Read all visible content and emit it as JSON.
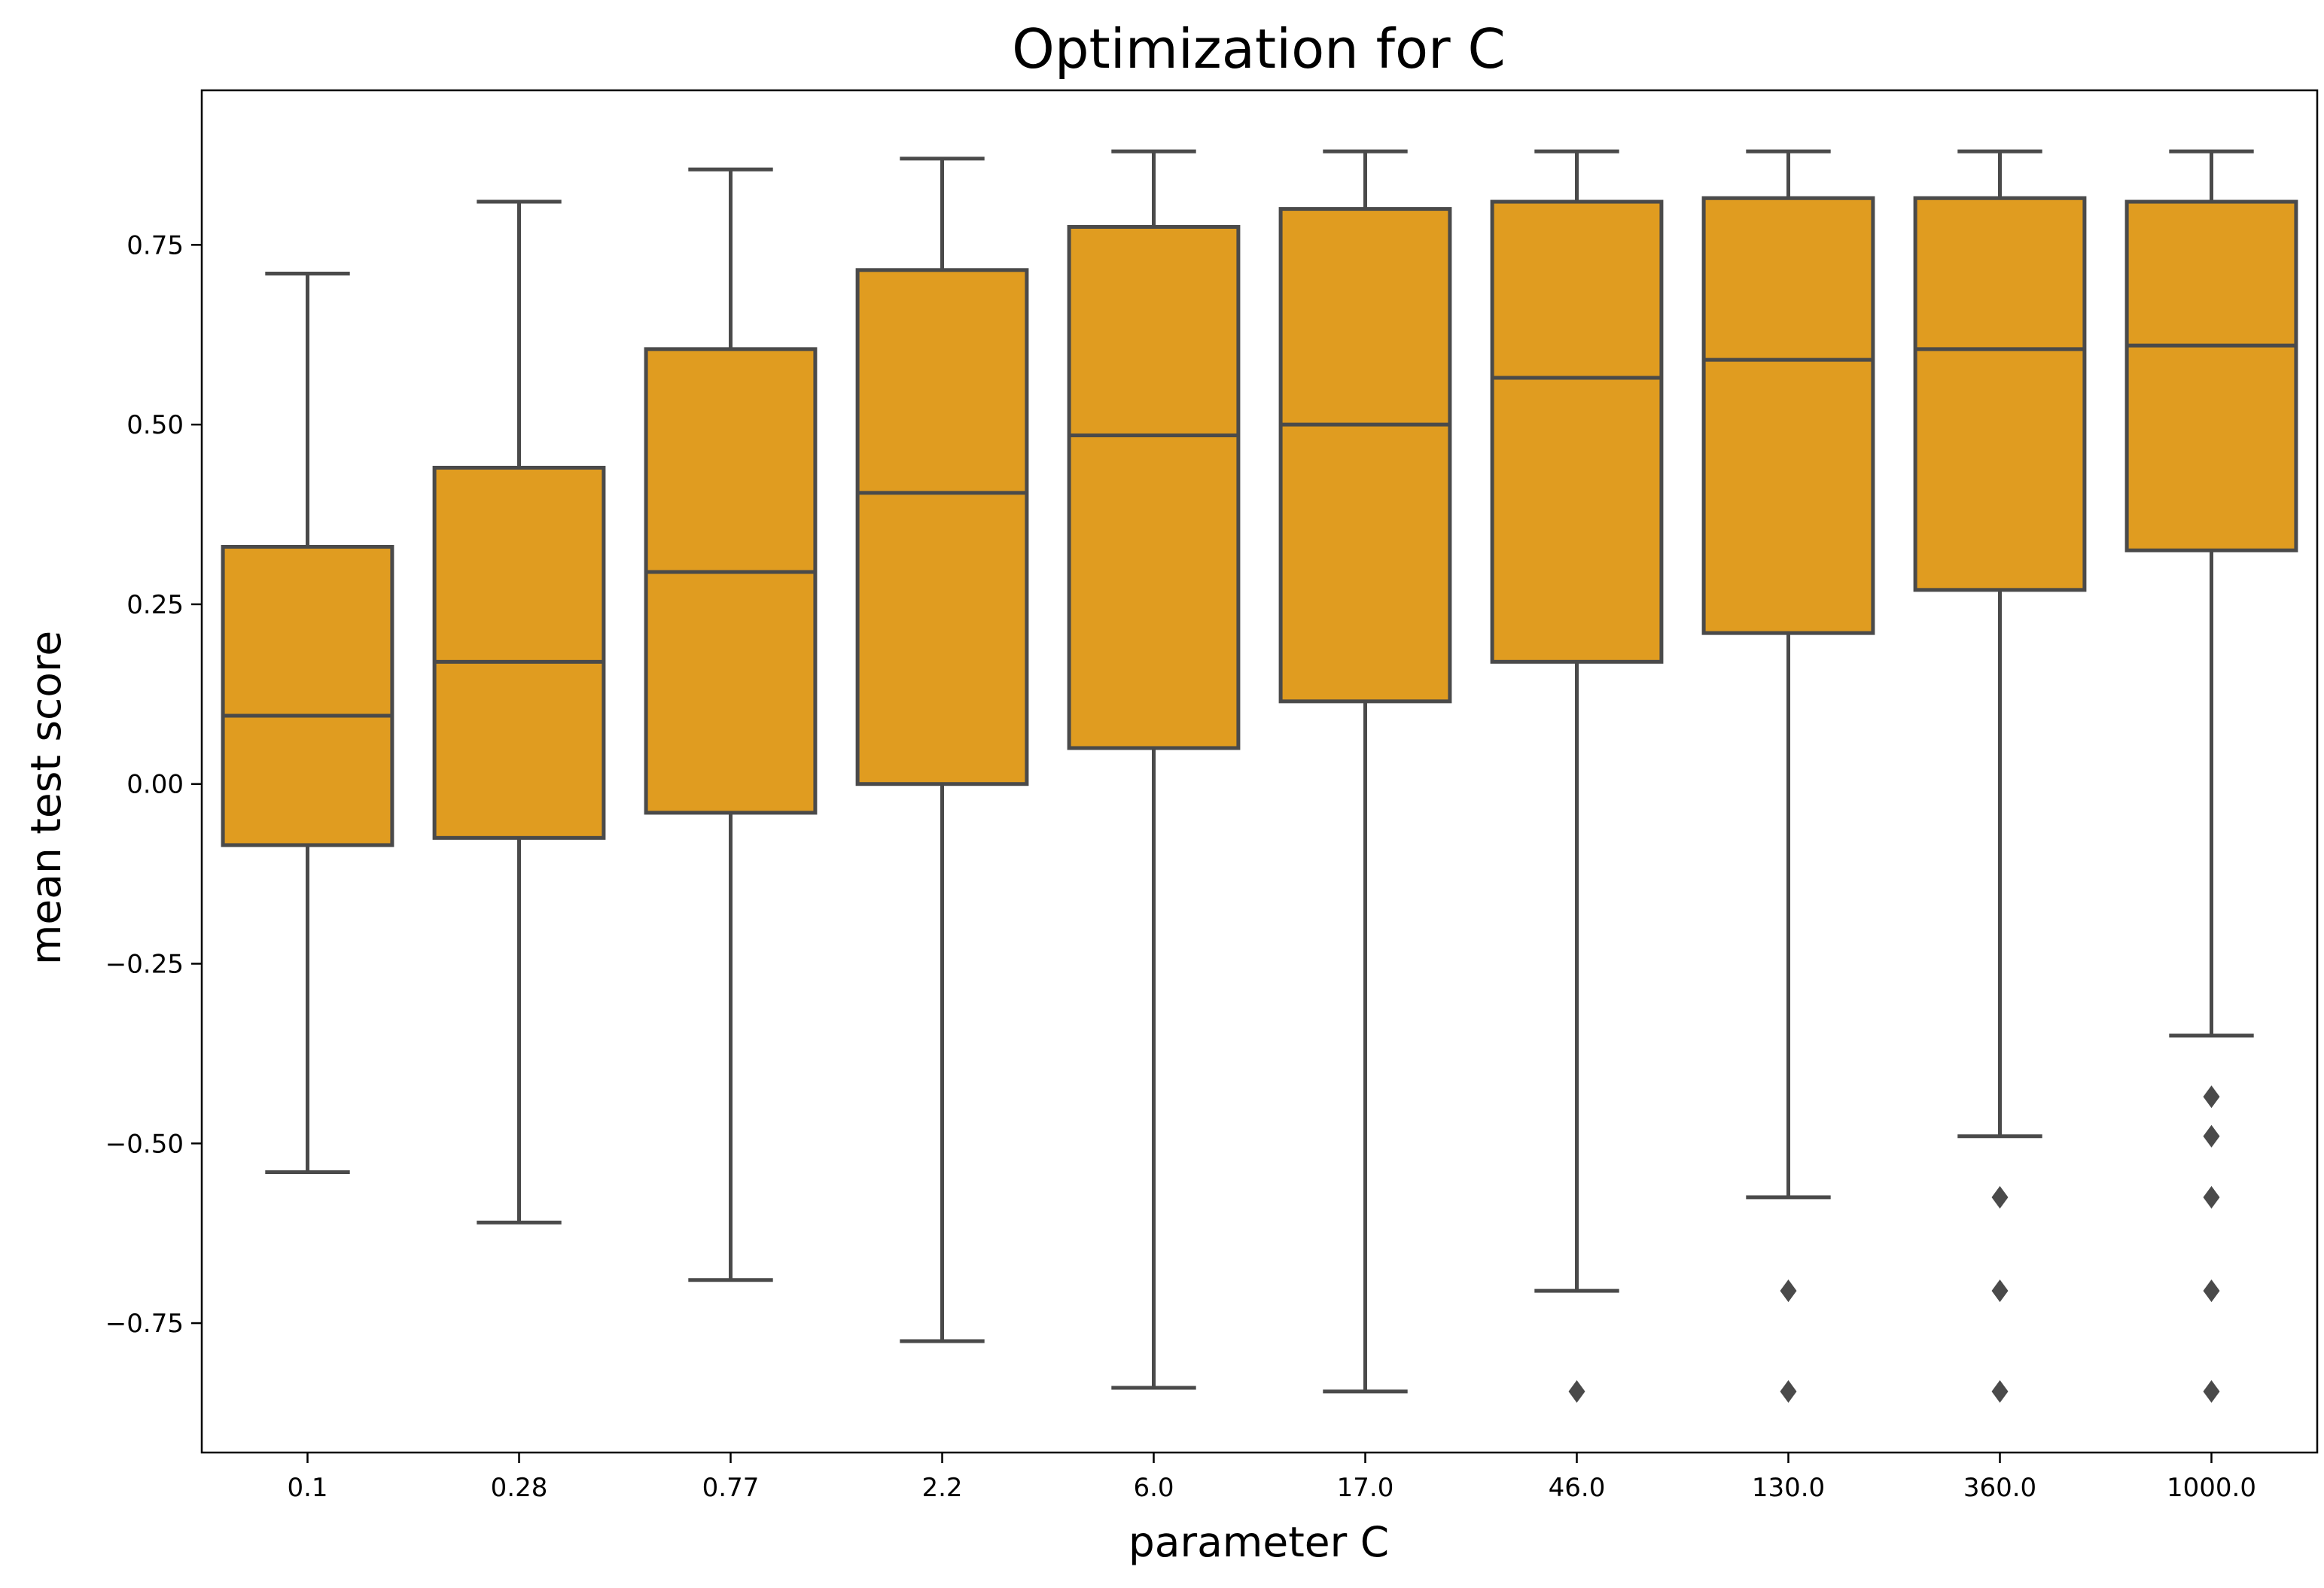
{
  "chart_data": {
    "type": "box",
    "title": "Optimization for C",
    "xlabel": "parameter C",
    "ylabel": "mean test score",
    "ylim": [
      -0.93,
      0.965
    ],
    "yticks": [
      -0.75,
      -0.5,
      -0.25,
      0.0,
      0.25,
      0.5,
      0.75
    ],
    "ytick_labels": [
      "−0.75",
      "−0.50",
      "−0.25",
      "0.00",
      "0.25",
      "0.50",
      "0.75"
    ],
    "categories": [
      "0.1",
      "0.28",
      "0.77",
      "2.2",
      "6.0",
      "17.0",
      "46.0",
      "130.0",
      "360.0",
      "1000.0"
    ],
    "boxes": [
      {
        "whislo": -0.54,
        "q1": -0.085,
        "med": 0.095,
        "q3": 0.33,
        "whishi": 0.71,
        "fliers": []
      },
      {
        "whislo": -0.61,
        "q1": -0.075,
        "med": 0.17,
        "q3": 0.44,
        "whishi": 0.81,
        "fliers": []
      },
      {
        "whislo": -0.69,
        "q1": -0.04,
        "med": 0.295,
        "q3": 0.605,
        "whishi": 0.855,
        "fliers": []
      },
      {
        "whislo": -0.775,
        "q1": 0.0,
        "med": 0.405,
        "q3": 0.715,
        "whishi": 0.87,
        "fliers": []
      },
      {
        "whislo": -0.84,
        "q1": 0.05,
        "med": 0.485,
        "q3": 0.775,
        "whishi": 0.88,
        "fliers": []
      },
      {
        "whislo": -0.845,
        "q1": 0.115,
        "med": 0.5,
        "q3": 0.8,
        "whishi": 0.88,
        "fliers": []
      },
      {
        "whislo": -0.705,
        "q1": 0.17,
        "med": 0.565,
        "q3": 0.81,
        "whishi": 0.88,
        "fliers": [
          -0.845
        ]
      },
      {
        "whislo": -0.575,
        "q1": 0.21,
        "med": 0.59,
        "q3": 0.815,
        "whishi": 0.88,
        "fliers": [
          -0.705,
          -0.845
        ]
      },
      {
        "whislo": -0.49,
        "q1": 0.27,
        "med": 0.605,
        "q3": 0.815,
        "whishi": 0.88,
        "fliers": [
          -0.575,
          -0.705,
          -0.845
        ]
      },
      {
        "whislo": -0.35,
        "q1": 0.325,
        "med": 0.61,
        "q3": 0.81,
        "whishi": 0.88,
        "fliers": [
          -0.435,
          -0.49,
          -0.575,
          -0.705,
          -0.845
        ]
      }
    ],
    "grid": false,
    "colors": {
      "box_fill": "#e09c20",
      "line": "#4a4a4a"
    }
  }
}
